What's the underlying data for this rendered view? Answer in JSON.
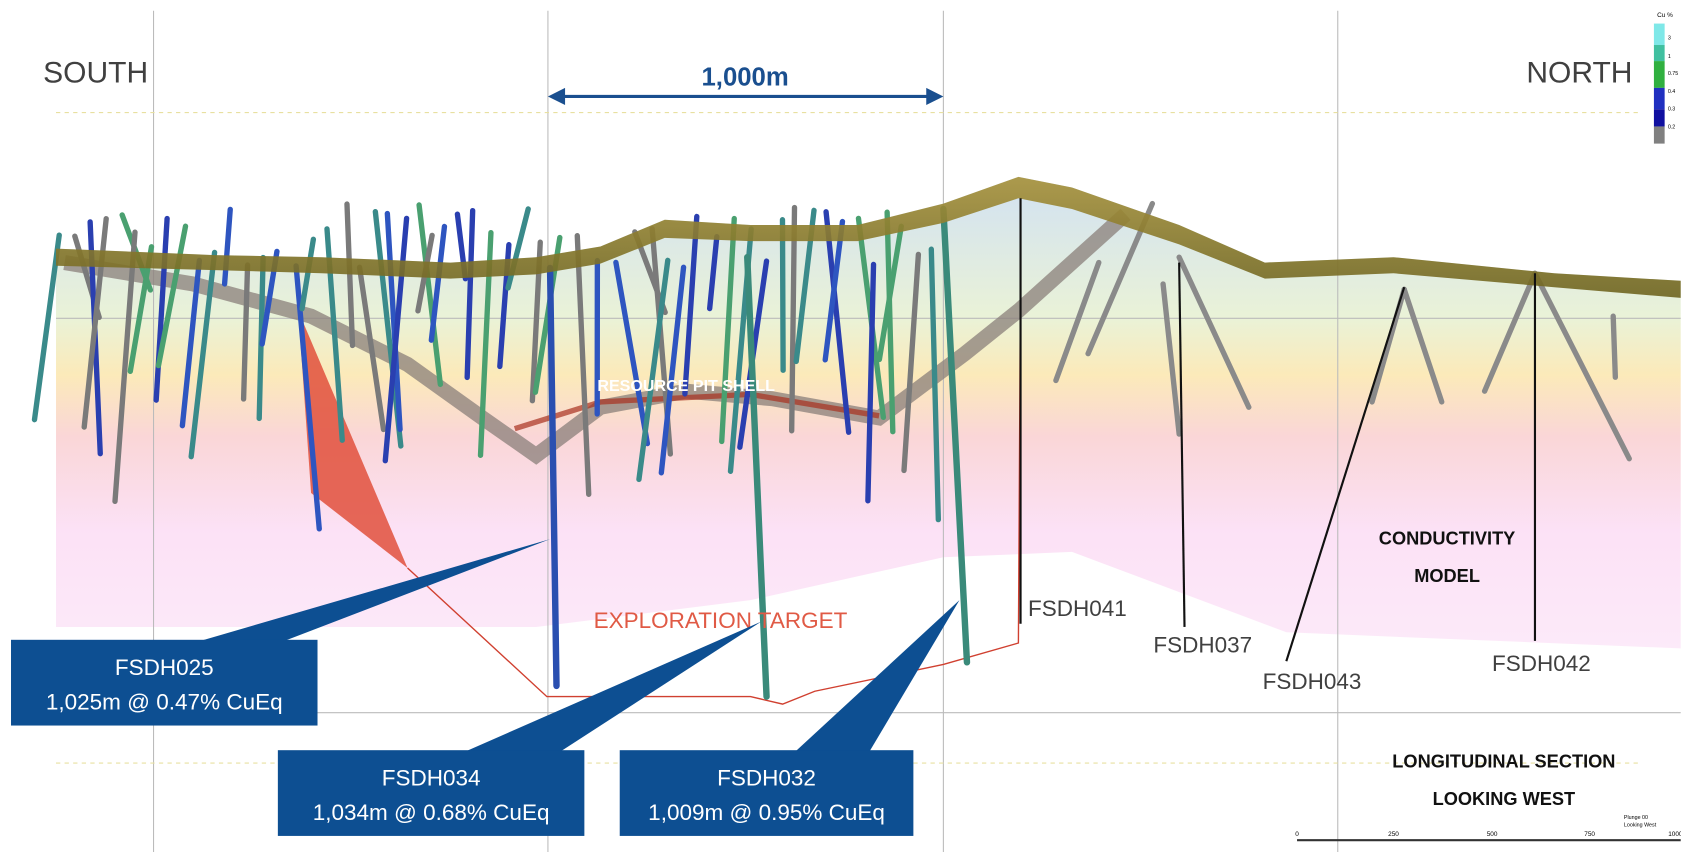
{
  "labels": {
    "south": "SOUTH",
    "north": "NORTH",
    "scale_span": "1,000m",
    "pit_shell": "RESOURCE PIT SHELL",
    "target": "EXPLORATION TARGET",
    "model": [
      "CONDUCTIVITY",
      "MODEL"
    ],
    "section": [
      "LONGITUDINAL SECTION",
      "LOOKING WEST"
    ]
  },
  "holes": [
    {
      "label": "FSDH041"
    },
    {
      "label": "FSDH037"
    },
    {
      "label": "FSDH043"
    },
    {
      "label": "FSDH042"
    }
  ],
  "callouts": [
    {
      "hole": "FSDH025",
      "result": "1,025m @ 0.47% CuEq"
    },
    {
      "hole": "FSDH034",
      "result": "1,034m @ 0.68% CuEq"
    },
    {
      "hole": "FSDH032",
      "result": "1,009m @ 0.95% CuEq"
    }
  ],
  "legend": {
    "title": "Cu %",
    "ticks": [
      "3",
      "1",
      "0.75",
      "0.4",
      "0.3",
      "0.2"
    ]
  },
  "scale_bar": {
    "ticks": [
      "0",
      "250",
      "500",
      "750",
      "1000"
    ]
  },
  "view": [
    "Plunge 00",
    "Looking West"
  ]
}
